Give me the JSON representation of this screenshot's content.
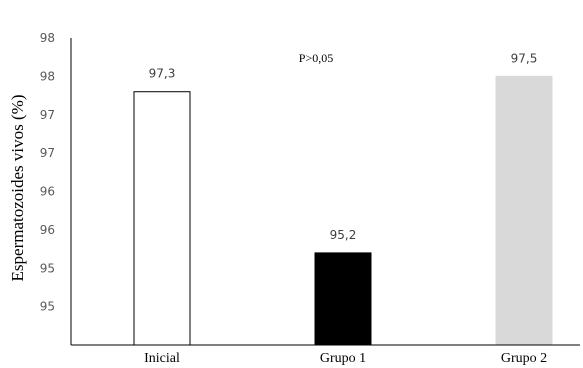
{
  "chart_data": {
    "type": "bar",
    "title": "",
    "xlabel": "",
    "ylabel": "Espermatozoides vivos (%)",
    "categories": [
      "Inicial",
      "Grupo 1",
      "Grupo 2"
    ],
    "values": [
      97.3,
      95.2,
      97.5
    ],
    "value_labels": [
      "97,3",
      "95,2",
      "97,5"
    ],
    "bar_fill_colors": [
      "#ffffff",
      "#000000",
      "#d9d9d9"
    ],
    "bar_stroke_colors": [
      "#000000",
      "#000000",
      "#d9d9d9"
    ],
    "y_ticks": [
      94.5,
      95.0,
      95.5,
      96.0,
      96.5,
      97.0,
      97.5,
      98.0
    ],
    "y_tick_labels": [
      "95",
      "95",
      "96",
      "96",
      "97",
      "97",
      "98",
      "98"
    ],
    "ylim": [
      94.0,
      98.0
    ],
    "annotation": "P>0,05",
    "grid": false,
    "legend": "none"
  }
}
